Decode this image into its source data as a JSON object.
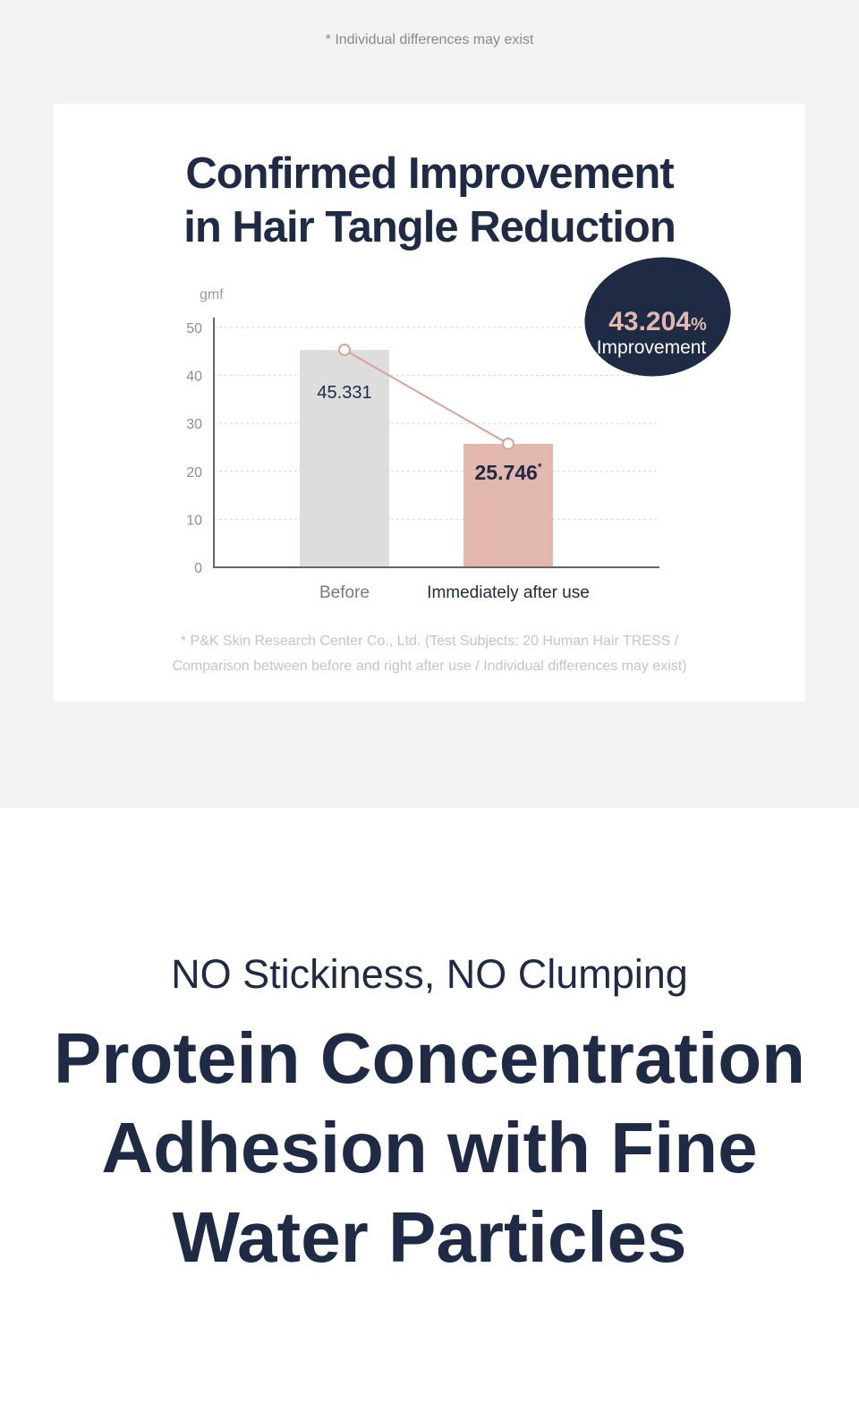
{
  "top_note": "* Individual differences may exist",
  "card": {
    "title_line1": "Confirmed Improvement",
    "title_line2": "in Hair Tangle Reduction",
    "badge_value": "43.204",
    "badge_unit": "%",
    "badge_label": "Improvement",
    "footnote_line1": "* P&K Skin Research Center Co., Ltd. (Test Subjects: 20 Human Hair TRESS /",
    "footnote_line2": "Comparison between before and right after use / Individual differences may exist)"
  },
  "chart_data": {
    "type": "bar",
    "ylabel": "gmf",
    "ylim": [
      0,
      50
    ],
    "yticks": [
      0,
      10,
      20,
      30,
      40,
      50
    ],
    "categories": [
      "Before",
      "Immediately after use"
    ],
    "values": [
      45.331,
      25.746
    ],
    "value_labels": [
      "45.331",
      "25.746"
    ],
    "value_markers": [
      "",
      "*"
    ],
    "bar_colors": [
      "#dddddd",
      "#e1b7ae"
    ],
    "line_color": "#d4a498",
    "grid": true
  },
  "bottom": {
    "subhead": "NO Stickiness, NO Clumping",
    "headline_line1": "Protein Concentration",
    "headline_line2": "Adhesion with Fine",
    "headline_line3": "Water Particles"
  }
}
